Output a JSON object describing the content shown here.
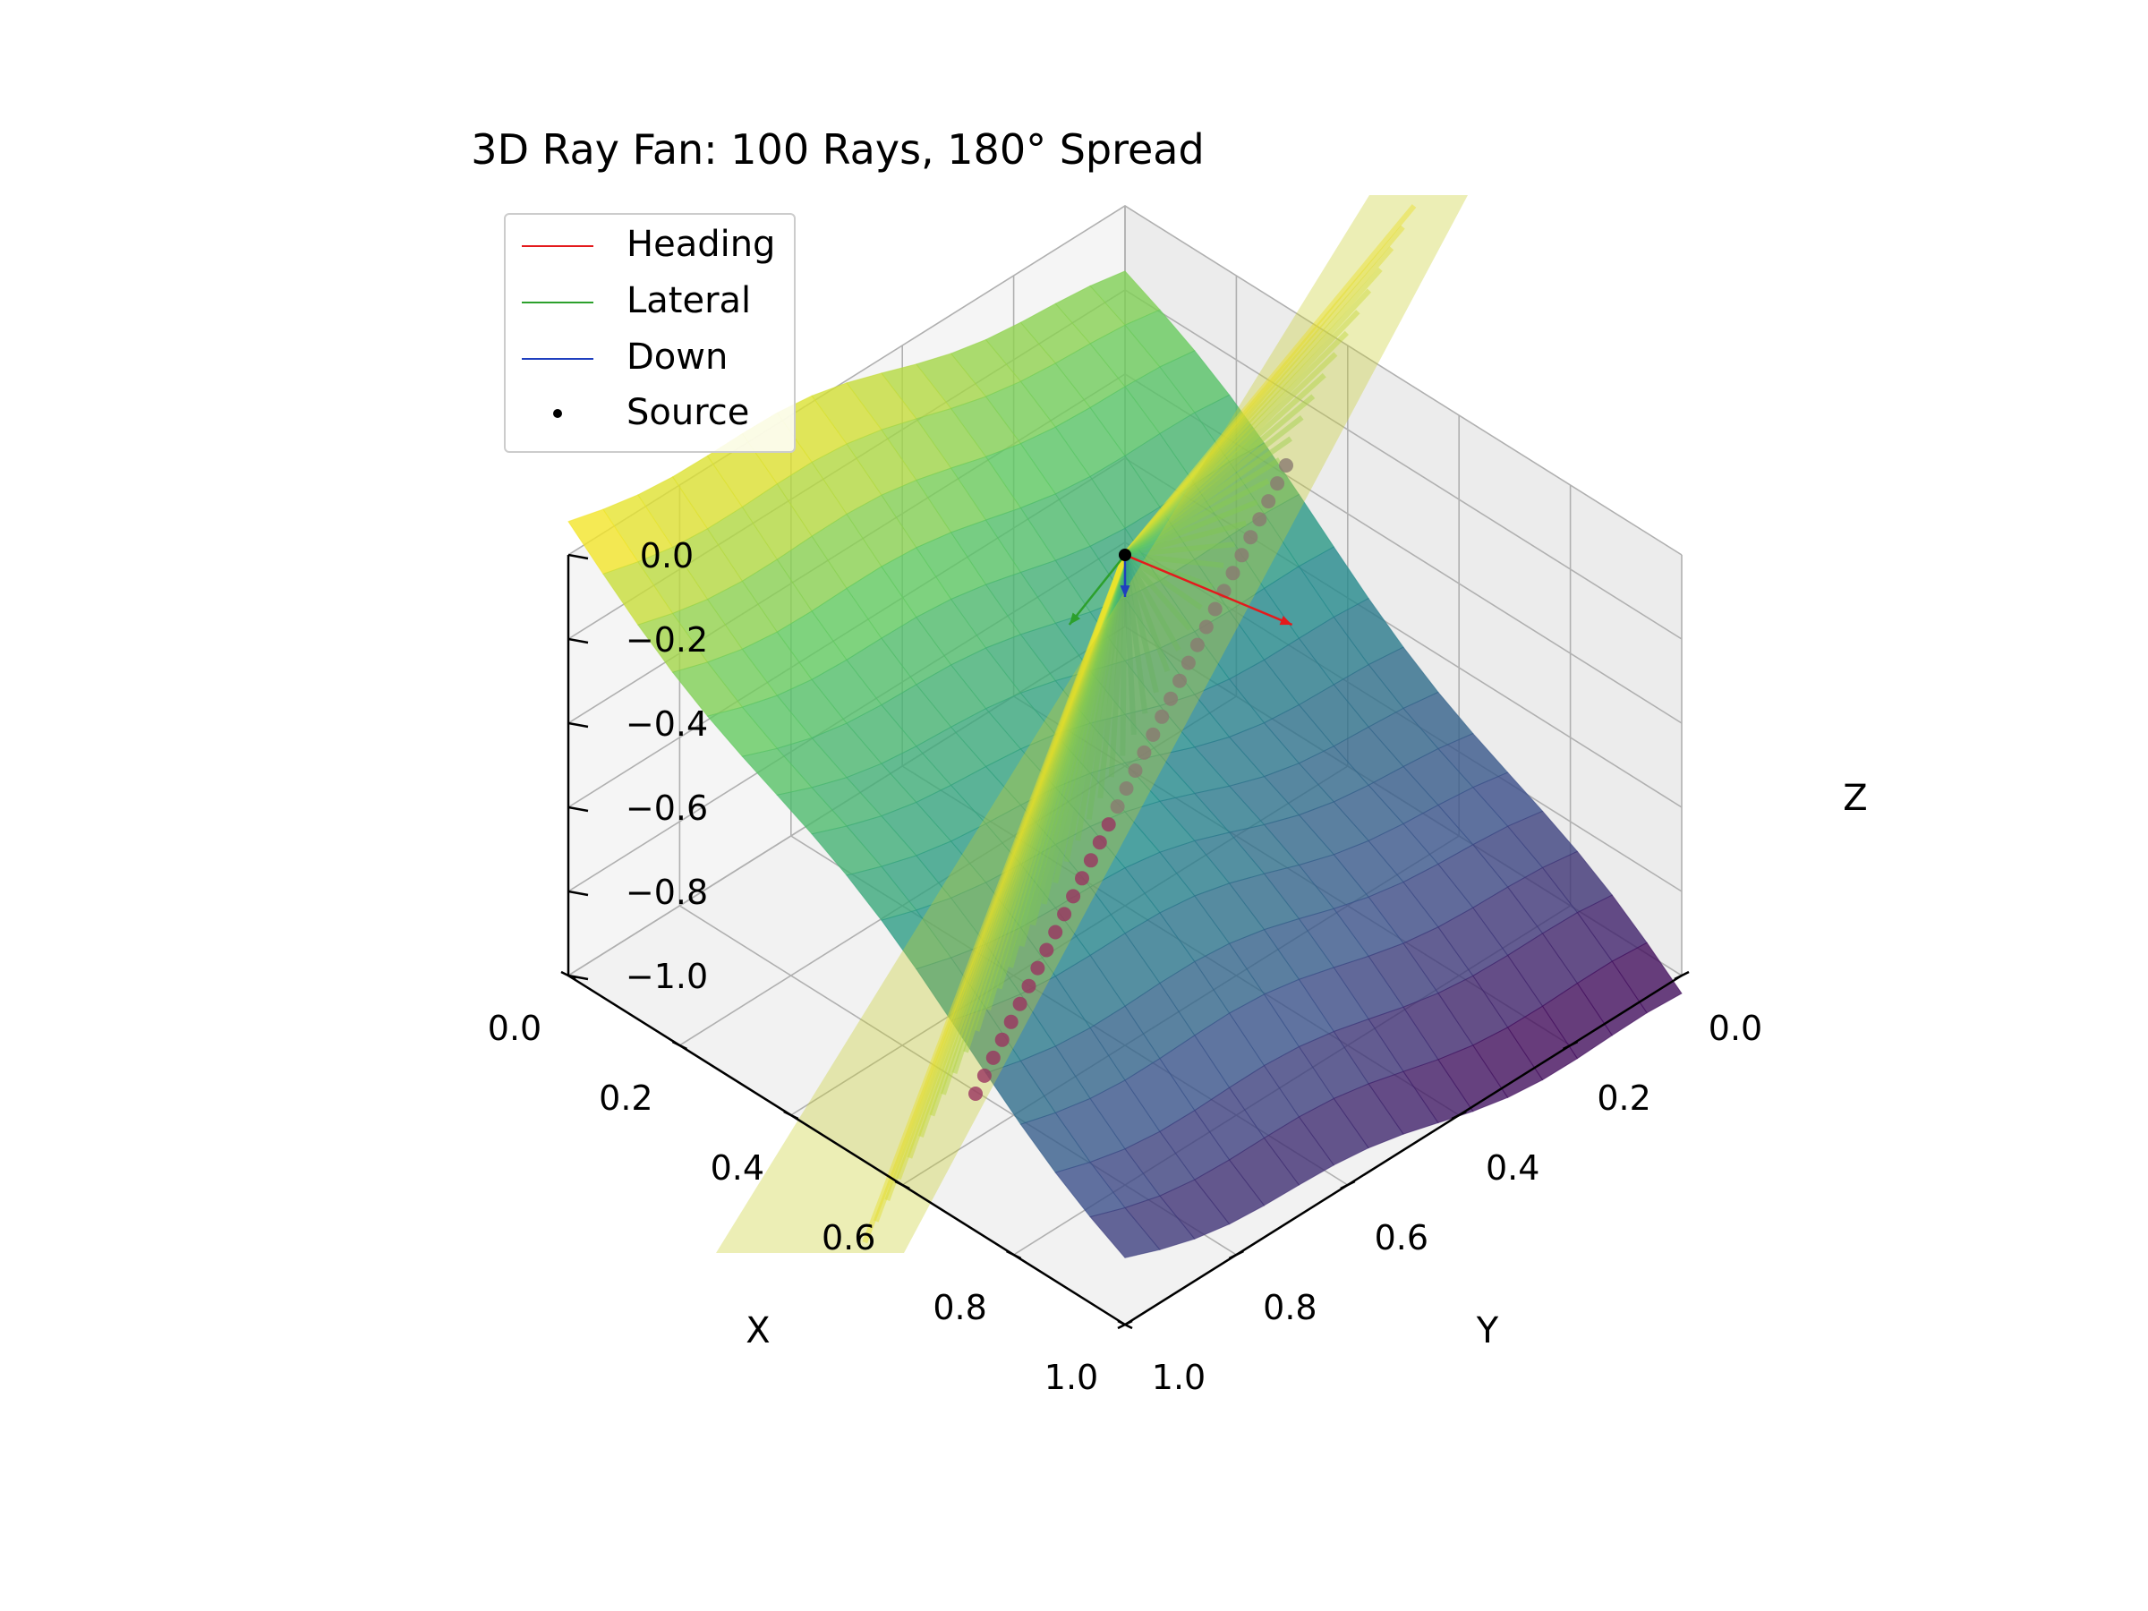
{
  "chart_data": {
    "type": "surface3d",
    "title": "3D Ray Fan: 100 Rays, 180° Spread",
    "xlabel": "X",
    "ylabel": "Y",
    "zlabel": "Z",
    "xlim": [
      0.0,
      1.0
    ],
    "ylim": [
      0.0,
      1.0
    ],
    "zlim": [
      -1.0,
      0.0
    ],
    "x_ticks": [
      "0.0",
      "0.2",
      "0.4",
      "0.6",
      "0.8",
      "1.0"
    ],
    "y_ticks": [
      "0.0",
      "0.2",
      "0.4",
      "0.6",
      "0.8",
      "1.0"
    ],
    "z_ticks": [
      "0.0",
      "−0.2",
      "−0.4",
      "−0.6",
      "−0.8",
      "−1.0"
    ],
    "grid": true,
    "legend_position": "top-left",
    "colormap": "viridis",
    "ray_count": 100,
    "spread_deg": 180,
    "source": {
      "x": 0.5,
      "y": 0.5,
      "z": 0.0
    },
    "legend": [
      {
        "label": "Heading",
        "color": "#e41a1c",
        "kind": "line"
      },
      {
        "label": "Lateral",
        "color": "#2ca02c",
        "kind": "line"
      },
      {
        "label": "Down",
        "color": "#1f3fbf",
        "kind": "line"
      },
      {
        "label": "Source",
        "color": "#000000",
        "kind": "dot"
      }
    ],
    "vectors": [
      {
        "name": "Heading",
        "dx": 0.25,
        "dy": -0.05,
        "dz": 0.0
      },
      {
        "name": "Lateral",
        "dx": 0.05,
        "dy": 0.15,
        "dz": 0.0
      },
      {
        "name": "Down",
        "dx": 0.0,
        "dy": 0.0,
        "dz": -0.1
      }
    ]
  }
}
